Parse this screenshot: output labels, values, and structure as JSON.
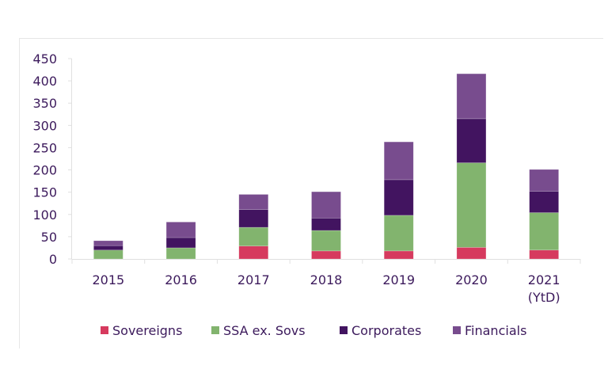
{
  "chart_data": {
    "type": "bar",
    "stacked": true,
    "title": "",
    "xlabel": "",
    "ylabel": "",
    "categories": [
      "2015",
      "2016",
      "2017",
      "2018",
      "2019",
      "2020",
      "2021\n(YtD)"
    ],
    "category_lines": [
      [
        "2015"
      ],
      [
        "2016"
      ],
      [
        "2017"
      ],
      [
        "2018"
      ],
      [
        "2019"
      ],
      [
        "2020"
      ],
      [
        "2021",
        "(YtD)"
      ]
    ],
    "series": [
      {
        "name": "Sovereigns",
        "color": "#d63a5e",
        "values": [
          0,
          0,
          29,
          18,
          18,
          26,
          20
        ]
      },
      {
        "name": "SSA ex. Sovs",
        "color": "#82b46e",
        "values": [
          20,
          25,
          42,
          46,
          80,
          190,
          84
        ]
      },
      {
        "name": "Corporates",
        "color": "#421460",
        "values": [
          10,
          23,
          40,
          28,
          80,
          99,
          48
        ]
      },
      {
        "name": "Financials",
        "color": "#784c8e",
        "values": [
          11,
          35,
          34,
          59,
          85,
          101,
          49
        ]
      }
    ],
    "yticks": [
      0,
      50,
      100,
      150,
      200,
      250,
      300,
      350,
      400,
      450
    ],
    "ylim": [
      0,
      450
    ],
    "grid": false,
    "legend_position": "bottom"
  },
  "colors": {
    "text": "#3c1a5c",
    "axis": "#e0e0e0",
    "frame": "#e6e6e6"
  }
}
